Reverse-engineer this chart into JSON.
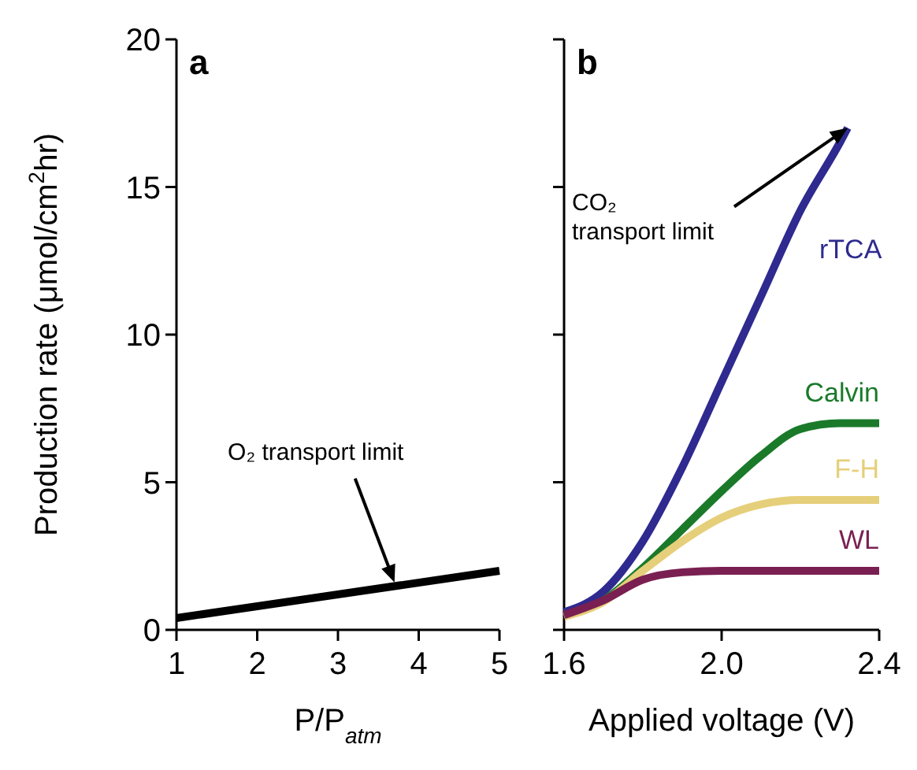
{
  "chart_data": [
    {
      "type": "line",
      "title": "a",
      "xlabel": "P/P$_{atm}$",
      "ylabel": "Production rate (μmol/cm$^{2}$hr)",
      "xlim": [
        1,
        5
      ],
      "xticks": [
        1,
        2,
        3,
        4,
        5
      ],
      "ylim": [
        0,
        20
      ],
      "yticks": [
        0,
        5,
        10,
        15,
        20
      ],
      "grid": false,
      "annotations": [
        {
          "text": "O₂ transport limit",
          "x": 3.7,
          "y": 1.5
        }
      ],
      "series": [
        {
          "color": "#000000",
          "x": [
            1,
            5
          ],
          "values": [
            0.4,
            2.0
          ]
        }
      ]
    },
    {
      "type": "line",
      "title": "b",
      "xlabel": "Applied voltage (V)",
      "xlim": [
        1.6,
        2.4
      ],
      "xticks": [
        {
          "value": 1.6,
          "label": "1.6"
        },
        {
          "value": 2.0,
          "label": "2.0"
        },
        {
          "value": 2.4,
          "label": "2.4"
        }
      ],
      "ylim": [
        0,
        20
      ],
      "yticks": [
        0,
        5,
        10,
        15,
        20
      ],
      "tick_labels": "x",
      "grid": false,
      "annotations": [
        {
          "text": "CO₂ transport limit",
          "x": 2.32,
          "y": 17
        }
      ],
      "series": [
        {
          "name": "rTCA",
          "color": "#2e2a8f",
          "x": [
            1.6,
            1.7,
            1.8,
            1.9,
            2.0,
            2.1,
            2.2,
            2.3,
            2.32
          ],
          "values": [
            0.6,
            1.3,
            3.0,
            5.5,
            8.4,
            11.3,
            14.2,
            16.5,
            17
          ]
        },
        {
          "name": "Calvin",
          "color": "#1a7a2a",
          "x": [
            1.6,
            1.7,
            1.8,
            1.9,
            2.0,
            2.1,
            2.2,
            2.3,
            2.4
          ],
          "values": [
            0.5,
            1.0,
            2.1,
            3.4,
            4.7,
            5.9,
            6.8,
            7.0,
            7.0
          ]
        },
        {
          "name": "F-H",
          "color": "#e6cf7a",
          "x": [
            1.6,
            1.7,
            1.8,
            1.9,
            2.0,
            2.1,
            2.2,
            2.3,
            2.4
          ],
          "values": [
            0.45,
            0.95,
            2.0,
            3.0,
            3.8,
            4.25,
            4.4,
            4.4,
            4.4
          ]
        },
        {
          "name": "WL",
          "color": "#7a1f52",
          "x": [
            1.6,
            1.7,
            1.8,
            1.9,
            2.0,
            2.2,
            2.4
          ],
          "values": [
            0.5,
            1.0,
            1.7,
            1.95,
            2.0,
            2.0,
            2.0
          ]
        }
      ]
    }
  ]
}
